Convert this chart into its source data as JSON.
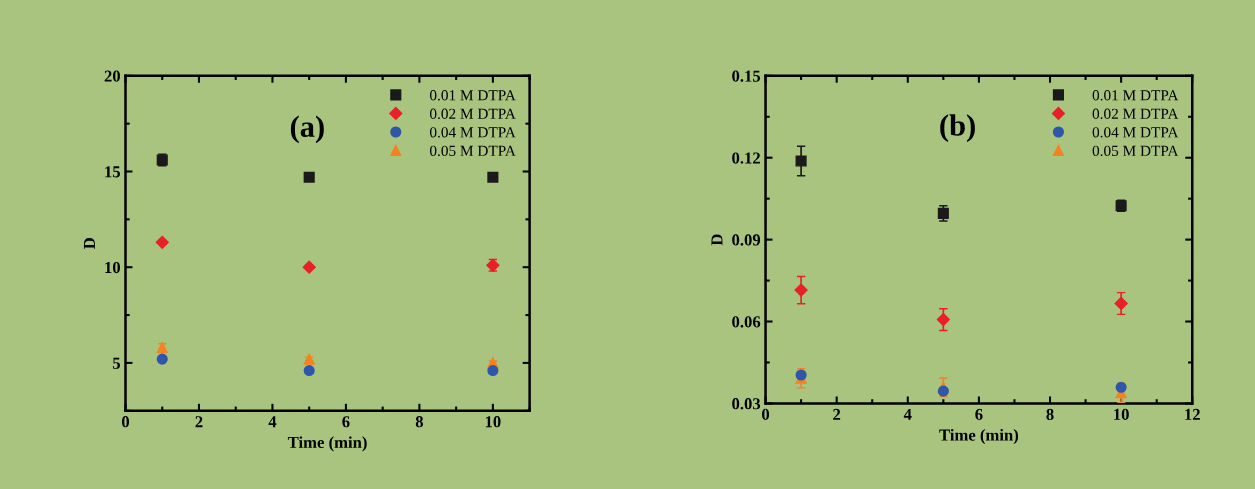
{
  "chart_data": [
    {
      "type": "scatter",
      "title": "(a)",
      "xlabel": "Time (min)",
      "ylabel": "D",
      "x": [
        1,
        5,
        10
      ],
      "xlim": [
        0,
        11
      ],
      "xticks": [
        0,
        2,
        4,
        6,
        8,
        10
      ],
      "ylim": [
        2.5,
        20
      ],
      "yticks": [
        5,
        10,
        15,
        20
      ],
      "legend": "top right",
      "grid": false,
      "series": [
        {
          "name": "0.01 M DTPA",
          "color": "#1a1a1a",
          "marker": "square",
          "values": [
            15.6,
            14.7,
            14.7
          ],
          "errors": [
            0.3,
            0.1,
            0.2
          ]
        },
        {
          "name": "0.02 M DTPA",
          "color": "#e8202a",
          "marker": "diamond",
          "values": [
            11.3,
            10.0,
            10.1
          ],
          "errors": [
            0.1,
            0.1,
            0.3
          ]
        },
        {
          "name": "0.04 M DTPA",
          "color": "#2f56a8",
          "marker": "circle",
          "values": [
            5.2,
            4.6,
            4.6
          ],
          "errors": [
            0.1,
            0.1,
            0.1
          ]
        },
        {
          "name": "0.05 M DTPA",
          "color": "#f58220",
          "marker": "triangle",
          "values": [
            5.8,
            5.2,
            5.0
          ],
          "errors": [
            0.2,
            0.1,
            0.1
          ]
        }
      ]
    },
    {
      "type": "scatter",
      "title": "(b)",
      "xlabel": "Time (min)",
      "ylabel": "D",
      "x": [
        1,
        5,
        10
      ],
      "xlim": [
        0,
        12
      ],
      "xticks": [
        0,
        2,
        4,
        6,
        8,
        10,
        12
      ],
      "ylim": [
        0.03,
        0.15
      ],
      "yticks": [
        0.03,
        0.06,
        0.09,
        0.12,
        0.15
      ],
      "legend": "top right",
      "grid": false,
      "series": [
        {
          "name": "0.01 M DTPA",
          "color": "#1a1a1a",
          "marker": "square",
          "values": [
            0.1188,
            0.0996,
            0.1024
          ],
          "errors": [
            0.0054,
            0.0028,
            0.002
          ]
        },
        {
          "name": "0.02 M DTPA",
          "color": "#e8202a",
          "marker": "diamond",
          "values": [
            0.0715,
            0.0607,
            0.0666
          ],
          "errors": [
            0.005,
            0.004,
            0.004
          ]
        },
        {
          "name": "0.04 M DTPA",
          "color": "#2f56a8",
          "marker": "circle",
          "values": [
            0.0404,
            0.0345,
            0.0359
          ],
          "errors": [
            0.001,
            0.001,
            0.001
          ]
        },
        {
          "name": "0.05 M DTPA",
          "color": "#f58220",
          "marker": "triangle",
          "values": [
            0.0392,
            0.0359,
            0.0339
          ],
          "errors": [
            0.0035,
            0.0034,
            0.0035
          ]
        }
      ]
    }
  ]
}
